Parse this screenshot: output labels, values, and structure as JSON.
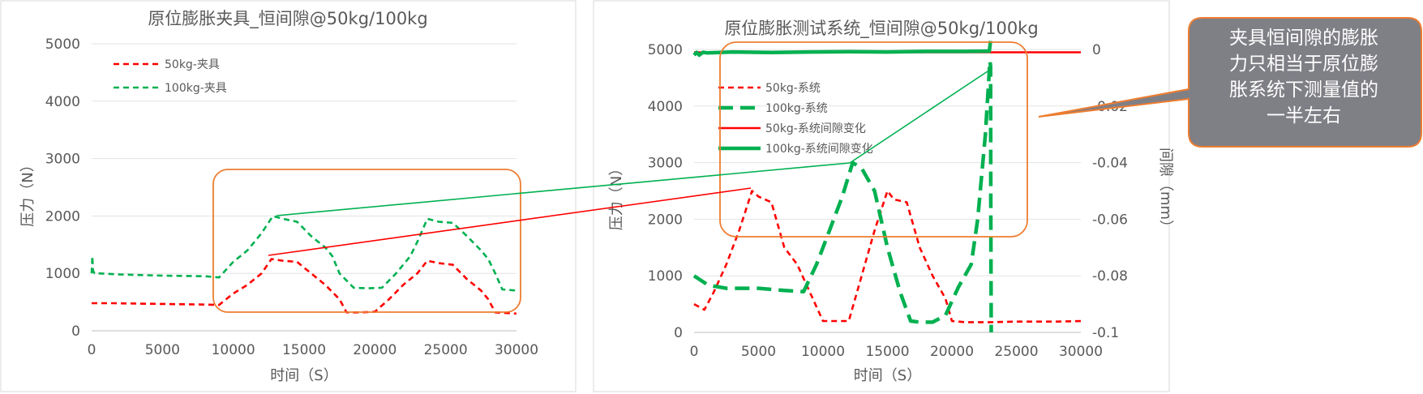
{
  "chart_data": [
    {
      "type": "line",
      "title": "原位膨胀夹具_恒间隙@50kg/100kg",
      "xlabel": "时间（S）",
      "ylabel": "压力（N）",
      "xlim": [
        0,
        30000
      ],
      "ylim": [
        0,
        5000
      ],
      "x_ticks": [
        "0",
        "5000",
        "10000",
        "15000",
        "20000",
        "25000",
        "30000"
      ],
      "y_ticks": [
        "0",
        "1000",
        "2000",
        "3000",
        "4000",
        "5000"
      ],
      "grid": "horizontal",
      "legend": "top-left",
      "series": [
        {
          "name": "50kg-夹具",
          "color": "#ff0000",
          "dash": "dashed",
          "x": [
            0,
            1500,
            4000,
            7000,
            9000,
            10000,
            11000,
            12000,
            12700,
            13500,
            14500,
            15500,
            16500,
            17500,
            18000,
            19000,
            20000,
            21000,
            22000,
            23000,
            23700,
            24500,
            25500,
            26500,
            27500,
            28000,
            28500,
            30000
          ],
          "y": [
            480,
            480,
            470,
            460,
            450,
            650,
            800,
            1000,
            1250,
            1220,
            1200,
            1000,
            800,
            550,
            320,
            320,
            330,
            550,
            800,
            1000,
            1220,
            1180,
            1150,
            900,
            700,
            550,
            320,
            300
          ]
        },
        {
          "name": "100kg-夹具",
          "color": "#00b050",
          "dash": "dashed",
          "x": [
            0,
            50,
            100,
            200,
            500,
            2000,
            5000,
            8000,
            9000,
            10000,
            11000,
            12000,
            12800,
            13500,
            14500,
            15500,
            16500,
            17000,
            17500,
            18500,
            19500,
            20500,
            21500,
            22500,
            23000,
            23700,
            24500,
            25500,
            26500,
            27500,
            28000,
            28500,
            29000,
            30000
          ],
          "y": [
            1000,
            1300,
            1050,
            1000,
            1000,
            980,
            960,
            950,
            930,
            1200,
            1400,
            1700,
            2000,
            1950,
            1900,
            1650,
            1450,
            1300,
            1000,
            750,
            740,
            750,
            1000,
            1300,
            1550,
            1950,
            1900,
            1880,
            1650,
            1400,
            1250,
            1000,
            720,
            700
          ]
        }
      ]
    },
    {
      "type": "line",
      "title": "原位膨胀测试系统_恒间隙@50kg/100kg",
      "xlabel": "时间（S）",
      "ylabel": "压力（N）",
      "ylabel_right": "间隙（mm）",
      "xlim": [
        0,
        30000
      ],
      "ylim": [
        0,
        5000
      ],
      "y2lim": [
        -0.1,
        0
      ],
      "x_ticks": [
        "0",
        "5000",
        "10000",
        "15000",
        "20000",
        "25000",
        "30000"
      ],
      "y_ticks": [
        "0",
        "1000",
        "2000",
        "3000",
        "4000",
        "5000"
      ],
      "y2_ticks": [
        "-0.1",
        "-0.08",
        "-0.06",
        "-0.04",
        "-0.02",
        "0"
      ],
      "grid": "horizontal",
      "legend": "top-left",
      "series": [
        {
          "name": "50kg-系统",
          "color": "#ff0000",
          "dash": "dashed",
          "axis": "left",
          "x": [
            0,
            800,
            1500,
            2500,
            3500,
            4500,
            5000,
            6000,
            7000,
            8000,
            9000,
            10000,
            11000,
            12000,
            13000,
            14000,
            15000,
            15500,
            16500,
            17500,
            18500,
            19500,
            20000,
            21000,
            23000,
            25000,
            28000,
            30000
          ],
          "y": [
            500,
            400,
            700,
            1200,
            1800,
            2500,
            2400,
            2300,
            1500,
            1200,
            700,
            200,
            200,
            200,
            1000,
            1800,
            2500,
            2350,
            2300,
            1500,
            1000,
            600,
            200,
            180,
            180,
            190,
            190,
            200
          ]
        },
        {
          "name": "100kg-系统",
          "color": "#00b050",
          "dash": "longdash",
          "axis": "left",
          "x": [
            0,
            1000,
            1500,
            2500,
            5000,
            7000,
            8500,
            9500,
            10500,
            11500,
            12300,
            13000,
            14000,
            15000,
            16000,
            16800,
            17500,
            18500,
            19500,
            20500,
            21500,
            22000,
            22600,
            22950,
            23000,
            23020,
            23050
          ],
          "y": [
            1000,
            850,
            820,
            780,
            780,
            740,
            720,
            1200,
            1800,
            2400,
            3000,
            2900,
            2500,
            1500,
            700,
            200,
            180,
            180,
            300,
            800,
            1200,
            2000,
            3500,
            4800,
            4700,
            2000,
            0
          ]
        },
        {
          "name": "50kg-系统间隙变化",
          "color": "#ff0000",
          "dash": "solid",
          "axis": "right",
          "x": [
            0,
            30000
          ],
          "y": [
            -0.001,
            -0.001
          ]
        },
        {
          "name": "100kg-系统间隙变化",
          "color": "#00b050",
          "dash": "solid",
          "axis": "right",
          "x": [
            0,
            200,
            400,
            700,
            1000,
            3000,
            6000,
            9000,
            12000,
            15000,
            18000,
            21000,
            22500,
            22900,
            23000
          ],
          "y": [
            -0.002,
            -0.001,
            -0.002,
            -0.001,
            -0.0012,
            -0.0009,
            -0.0011,
            -0.0009,
            -0.0008,
            -0.0009,
            -0.0007,
            -0.0007,
            -0.0006,
            -0.0006,
            0.003
          ]
        }
      ]
    }
  ],
  "callout": {
    "lines": [
      "夹具恒间隙的膨胀",
      "力只相当于原位膨",
      "胀系统下测量值的",
      "一半左右"
    ],
    "fill": "#7f7f86",
    "border": "#ed7d31"
  }
}
